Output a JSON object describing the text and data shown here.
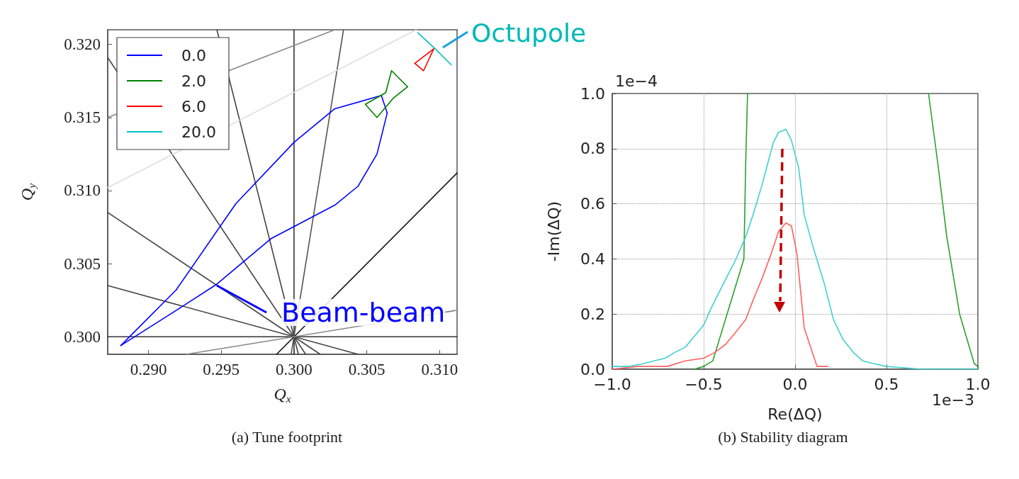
{
  "chart_data": [
    {
      "type": "line",
      "title": "(a) Tune footprint",
      "xlabel": "Q$_{x}$",
      "ylabel": "Q$_{y}$",
      "xlim": [
        0.2872,
        0.3112
      ],
      "ylim": [
        0.2988,
        0.321
      ],
      "xticks": [
        {
          "value": 0.29,
          "label": "0.290"
        },
        {
          "value": 0.295,
          "label": "0.295"
        },
        {
          "value": 0.3,
          "label": "0.300"
        },
        {
          "value": 0.305,
          "label": "0.305"
        },
        {
          "value": 0.31,
          "label": "0.310"
        }
      ],
      "yticks": [
        {
          "value": 0.3,
          "label": "0.300"
        },
        {
          "value": 0.305,
          "label": "0.305"
        },
        {
          "value": 0.31,
          "label": "0.310"
        },
        {
          "value": 0.315,
          "label": "0.315"
        },
        {
          "value": 0.32,
          "label": "0.320"
        }
      ],
      "legend": "top left",
      "annotations": [
        {
          "text": "Beam-beam",
          "x": 0.2947,
          "y": 0.3035
        },
        "Octupole"
      ],
      "series": [
        {
          "color": "#333333",
          "x": [
            0.3,
            0.3
          ],
          "values": [
            0.2988,
            0.321
          ]
        },
        {
          "color": "#333333",
          "x": [
            0.2872,
            0.3112
          ],
          "values": [
            0.3,
            0.3
          ]
        },
        {
          "color": "#111111",
          "x": [
            0.2988,
            0.3112
          ],
          "values": [
            0.2988,
            0.3112
          ]
        },
        {
          "color": "#444444",
          "x": [
            0.2872,
            0.3044
          ],
          "values": [
            0.3035,
            0.2988
          ]
        },
        {
          "color": "#444444",
          "x": [
            0.2872,
            0.3018
          ],
          "values": [
            0.3085,
            0.2988
          ]
        },
        {
          "color": "#444444",
          "x": [
            0.2872,
            0.3008
          ],
          "values": [
            0.3191,
            0.2988
          ]
        },
        {
          "color": "#444444",
          "x": [
            0.2947,
            0.3003
          ],
          "values": [
            0.321,
            0.2988
          ]
        },
        {
          "color": "#555555",
          "x": [
            0.3034,
            0.2998
          ],
          "values": [
            0.321,
            0.2988
          ]
        },
        {
          "color": "#888888",
          "x": [
            0.2872,
            0.3028
          ],
          "values": [
            0.315,
            0.321
          ]
        },
        {
          "color": "#dddddd",
          "x": [
            0.2872,
            0.3084
          ],
          "values": [
            0.3102,
            0.321
          ]
        },
        {
          "color": "#888888",
          "x": [
            0.2926,
            0.3111
          ],
          "values": [
            0.2988,
            0.3018
          ]
        },
        {
          "name": "0.0",
          "color": "#0000ff",
          "x": [
            0.2881,
            0.2919,
            0.296,
            0.3,
            0.3028,
            0.306,
            0.3064
          ],
          "values": [
            0.2994,
            0.3032,
            0.3091,
            0.3133,
            0.3156,
            0.3165,
            0.3153
          ]
        },
        {
          "color": "#0000ff",
          "x": [
            0.2881,
            0.2919,
            0.2947,
            0.2984,
            0.3028,
            0.3044,
            0.3057,
            0.3064
          ],
          "values": [
            0.2994,
            0.3018,
            0.3036,
            0.3067,
            0.309,
            0.3103,
            0.3125,
            0.3153
          ]
        },
        {
          "name": "2.0",
          "color": "#008000",
          "x": [
            0.3049,
            0.3063,
            0.3067,
            0.3078
          ],
          "values": [
            0.3159,
            0.3167,
            0.3182,
            0.3171
          ]
        },
        {
          "color": "#008000",
          "x": [
            0.3049,
            0.3057,
            0.3068,
            0.3078
          ],
          "values": [
            0.3159,
            0.315,
            0.3163,
            0.3171
          ]
        },
        {
          "name": "6.0",
          "color": "#ff0000",
          "x": [
            0.3083,
            0.3096
          ],
          "values": [
            0.3187,
            0.3197
          ]
        },
        {
          "color": "#ff0000",
          "x": [
            0.3083,
            0.3089,
            0.3096
          ],
          "values": [
            0.3187,
            0.3182,
            0.3197
          ]
        },
        {
          "name": "20.0",
          "color": "#00c0c0",
          "x": [
            0.3085,
            0.3097,
            0.3108
          ],
          "values": [
            0.3208,
            0.3197,
            0.3186
          ]
        }
      ]
    },
    {
      "type": "line",
      "title": "(b) Stability diagram",
      "xlabel": "Re(ΔQ)",
      "ylabel": "-Im(ΔQ)",
      "xlim": [
        -1,
        1
      ],
      "ylim": [
        0,
        1
      ],
      "xticks": [
        {
          "value": -1,
          "label": "−1.0"
        },
        {
          "value": -0.5,
          "label": "−0.5"
        },
        {
          "value": 0,
          "label": "0.0"
        },
        {
          "value": 0.5,
          "label": "0.5"
        },
        {
          "value": 1,
          "label": "1.0"
        }
      ],
      "yticks": [
        {
          "value": 0,
          "label": "0.0"
        },
        {
          "value": 0.2,
          "label": "0.2"
        },
        {
          "value": 0.4,
          "label": "0.4"
        },
        {
          "value": 0.6,
          "label": "0.6"
        },
        {
          "value": 0.8,
          "label": "0.8"
        },
        {
          "value": 1,
          "label": "1.0"
        }
      ],
      "grid": true,
      "annotations": [
        "1e−4",
        "1e−3"
      ],
      "series": [
        {
          "color": "#2ca02c",
          "x": [
            -0.55,
            -0.5,
            -0.45,
            -0.28,
            -0.27,
            -0.26,
            0.23,
            0.73,
            0.78,
            0.83,
            0.9,
            0.98,
            1.0
          ],
          "values": [
            0,
            0.01,
            0.03,
            0.4,
            0.75,
            1.0,
            null,
            1.0,
            0.75,
            0.48,
            0.2,
            0.02,
            0.01
          ]
        },
        {
          "color": "#ff6060",
          "x": [
            -1.0,
            -0.86,
            -0.7,
            -0.6,
            -0.5,
            -0.44,
            -0.38,
            -0.33,
            -0.27,
            -0.23,
            -0.18,
            -0.13,
            -0.09,
            -0.05,
            -0.02,
            0.01,
            0.05,
            0.12,
            0.18
          ],
          "values": [
            0,
            0.01,
            0.01,
            0.03,
            0.04,
            0.06,
            0.09,
            0.13,
            0.18,
            0.25,
            0.33,
            0.42,
            0.5,
            0.53,
            0.52,
            0.42,
            0.15,
            0.01,
            0.01
          ]
        },
        {
          "color": "#40d0d0",
          "x": [
            -1.0,
            -0.91,
            -0.83,
            -0.77,
            -0.71,
            -0.66,
            -0.6,
            -0.55,
            -0.5,
            -0.46,
            -0.4,
            -0.33,
            -0.27,
            -0.23,
            -0.18,
            -0.12,
            -0.09,
            -0.05,
            -0.02,
            0.02,
            0.05,
            0.1,
            0.16,
            0.21,
            0.26,
            0.32,
            0.37,
            0.43,
            0.5,
            0.69,
            1.0
          ],
          "values": [
            0.01,
            0.01,
            0.02,
            0.03,
            0.04,
            0.06,
            0.08,
            0.12,
            0.16,
            0.22,
            0.3,
            0.39,
            0.48,
            0.56,
            0.67,
            0.82,
            0.86,
            0.87,
            0.83,
            0.73,
            0.56,
            0.44,
            0.31,
            0.18,
            0.11,
            0.06,
            0.03,
            0.02,
            0.01,
            0,
            0
          ]
        }
      ]
    }
  ]
}
